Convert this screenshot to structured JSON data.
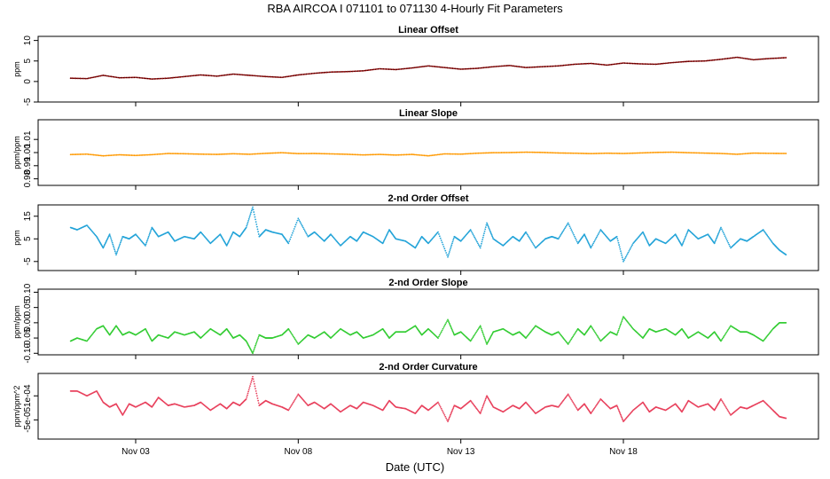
{
  "title": "RBA   AIRCOA I   071101 to 071130   4-Hourly Fit Parameters",
  "xlabel": "Date (UTC)",
  "x_ticks": [
    {
      "day": 3,
      "label": "Nov 03"
    },
    {
      "day": 8,
      "label": "Nov 08"
    },
    {
      "day": 13,
      "label": "Nov 13"
    },
    {
      "day": 18,
      "label": "Nov 18"
    }
  ],
  "x_range": [
    0.0,
    24.0
  ],
  "chart_data": [
    {
      "type": "line",
      "title": "Linear Offset",
      "ylabel": "ppm",
      "ylim": [
        -5,
        11
      ],
      "yticks": [
        {
          "v": -5,
          "label": "-5"
        },
        {
          "v": 0,
          "label": "0"
        },
        {
          "v": 5,
          "label": "5"
        },
        {
          "v": 10,
          "label": "10"
        }
      ],
      "color": "#8b0000",
      "x": [
        1.0,
        1.5,
        2.0,
        2.5,
        3.0,
        3.5,
        4.0,
        4.5,
        5.0,
        5.5,
        6.0,
        6.5,
        7.0,
        7.5,
        8.0,
        8.5,
        9.0,
        9.5,
        10.0,
        10.5,
        11.0,
        11.5,
        12.0,
        12.5,
        13.0,
        13.5,
        14.0,
        14.5,
        15.0,
        15.5,
        16.0,
        16.5,
        17.0,
        17.5,
        18.0,
        18.5,
        19.0,
        19.5,
        20.0,
        20.5,
        21.0,
        21.5,
        22.0,
        22.5,
        23.0
      ],
      "values": [
        0.8,
        0.7,
        1.5,
        0.9,
        1.0,
        0.6,
        0.8,
        1.2,
        1.6,
        1.3,
        1.8,
        1.5,
        1.2,
        1.0,
        1.6,
        2.0,
        2.3,
        2.4,
        2.6,
        3.1,
        2.9,
        3.3,
        3.8,
        3.4,
        3.0,
        3.2,
        3.6,
        3.9,
        3.4,
        3.6,
        3.8,
        4.2,
        4.4,
        4.0,
        4.5,
        4.3,
        4.2,
        4.6,
        4.9,
        5.0,
        5.4,
        5.9,
        5.3,
        5.6,
        5.8
      ]
    },
    {
      "type": "line",
      "title": "Linear Slope",
      "ylabel": "ppm/ppm",
      "ylim": [
        0.975,
        1.025
      ],
      "yticks": [
        {
          "v": 0.98,
          "label": "0.98"
        },
        {
          "v": 0.99,
          "label": "0.99"
        },
        {
          "v": 1.0,
          "label": "1.00"
        },
        {
          "v": 1.01,
          "label": "1.01"
        }
      ],
      "color": "#ff9900",
      "x": [
        1.0,
        1.5,
        2.0,
        2.5,
        3.0,
        3.5,
        4.0,
        4.5,
        5.0,
        5.5,
        6.0,
        6.5,
        7.0,
        7.5,
        8.0,
        8.5,
        9.0,
        9.5,
        10.0,
        10.5,
        11.0,
        11.5,
        12.0,
        12.5,
        13.0,
        13.5,
        14.0,
        14.5,
        15.0,
        15.5,
        16.0,
        16.5,
        17.0,
        17.5,
        18.0,
        18.5,
        19.0,
        19.5,
        20.0,
        20.5,
        21.0,
        21.5,
        22.0,
        22.5,
        23.0
      ],
      "values": [
        0.9985,
        0.9988,
        0.9975,
        0.9983,
        0.9978,
        0.9984,
        0.9993,
        0.9991,
        0.9988,
        0.9986,
        0.9991,
        0.9987,
        0.9994,
        0.9999,
        0.9992,
        0.9993,
        0.999,
        0.9987,
        0.9982,
        0.9986,
        0.9981,
        0.9986,
        0.9975,
        0.999,
        0.9988,
        0.9995,
        0.9999,
        1.0,
        1.0003,
        1.0001,
        0.9997,
        0.9995,
        0.9992,
        0.9995,
        0.9993,
        0.9997,
        1.0001,
        1.0003,
        0.9999,
        0.9996,
        0.9993,
        0.9987,
        0.9996,
        0.9994,
        0.9993
      ]
    },
    {
      "type": "line",
      "title": "2-nd Order Offset",
      "ylabel": "ppm",
      "ylim": [
        -9,
        20
      ],
      "yticks": [
        {
          "v": -5,
          "label": "-5"
        },
        {
          "v": 5,
          "label": "5"
        },
        {
          "v": 15,
          "label": "15"
        }
      ],
      "color": "#22a3d8",
      "x": [
        1.0,
        1.2,
        1.5,
        1.8,
        2.0,
        2.2,
        2.4,
        2.6,
        2.8,
        3.0,
        3.3,
        3.5,
        3.7,
        4.0,
        4.2,
        4.5,
        4.8,
        5.0,
        5.3,
        5.6,
        5.8,
        6.0,
        6.2,
        6.4,
        6.6,
        6.8,
        7.0,
        7.2,
        7.5,
        7.7,
        8.0,
        8.3,
        8.5,
        8.8,
        9.0,
        9.3,
        9.6,
        9.8,
        10.0,
        10.3,
        10.6,
        10.8,
        11.0,
        11.3,
        11.6,
        11.8,
        12.0,
        12.3,
        12.6,
        12.8,
        13.0,
        13.3,
        13.6,
        13.8,
        14.0,
        14.3,
        14.6,
        14.8,
        15.0,
        15.3,
        15.6,
        15.8,
        16.0,
        16.3,
        16.6,
        16.8,
        17.0,
        17.3,
        17.6,
        17.8,
        18.0,
        18.3,
        18.6,
        18.8,
        19.0,
        19.3,
        19.6,
        19.8,
        20.0,
        20.3,
        20.6,
        20.8,
        21.0,
        21.3,
        21.6,
        21.8,
        22.0,
        22.3,
        22.6,
        22.8,
        23.0
      ],
      "values": [
        10,
        9,
        11,
        6,
        1,
        7,
        -2,
        6,
        5,
        7,
        2,
        10,
        6,
        8,
        4,
        6,
        5,
        8,
        3,
        7,
        2,
        8,
        6,
        10,
        19,
        6,
        9,
        8,
        7,
        3,
        14,
        6,
        8,
        4,
        7,
        2,
        6,
        4,
        8,
        6,
        3,
        9,
        5,
        4,
        1,
        6,
        3,
        8,
        -3,
        6,
        4,
        9,
        1,
        12,
        5,
        2,
        6,
        4,
        8,
        1,
        5,
        6,
        5,
        12,
        3,
        7,
        1,
        9,
        4,
        6,
        -5,
        3,
        8,
        2,
        5,
        3,
        7,
        2,
        9,
        5,
        7,
        3,
        10,
        1,
        5,
        4,
        6,
        9,
        3,
        0,
        -2
      ]
    },
    {
      "type": "line",
      "title": "2-nd Order Slope",
      "ylabel": "ppm/ppm",
      "ylim": [
        -0.105,
        0.11
      ],
      "yticks": [
        {
          "v": -0.1,
          "label": "-0.10"
        },
        {
          "v": -0.05,
          "label": "-0.05"
        },
        {
          "v": 0.0,
          "label": "0.00"
        },
        {
          "v": 0.05,
          "label": "0.05"
        },
        {
          "v": 0.1,
          "label": "0.10"
        }
      ],
      "color": "#33cc33",
      "x": [
        1.0,
        1.2,
        1.5,
        1.8,
        2.0,
        2.2,
        2.4,
        2.6,
        2.8,
        3.0,
        3.3,
        3.5,
        3.7,
        4.0,
        4.2,
        4.5,
        4.8,
        5.0,
        5.3,
        5.6,
        5.8,
        6.0,
        6.2,
        6.4,
        6.6,
        6.8,
        7.0,
        7.2,
        7.5,
        7.7,
        8.0,
        8.3,
        8.5,
        8.8,
        9.0,
        9.3,
        9.6,
        9.8,
        10.0,
        10.3,
        10.6,
        10.8,
        11.0,
        11.3,
        11.6,
        11.8,
        12.0,
        12.3,
        12.6,
        12.8,
        13.0,
        13.3,
        13.6,
        13.8,
        14.0,
        14.3,
        14.6,
        14.8,
        15.0,
        15.3,
        15.6,
        15.8,
        16.0,
        16.3,
        16.6,
        16.8,
        17.0,
        17.3,
        17.6,
        17.8,
        18.0,
        18.3,
        18.6,
        18.8,
        19.0,
        19.3,
        19.6,
        19.8,
        20.0,
        20.3,
        20.6,
        20.8,
        21.0,
        21.3,
        21.6,
        21.8,
        22.0,
        22.3,
        22.6,
        22.8,
        23.0
      ],
      "values": [
        -0.06,
        -0.05,
        -0.06,
        -0.02,
        -0.01,
        -0.04,
        -0.01,
        -0.04,
        -0.03,
        -0.04,
        -0.02,
        -0.06,
        -0.04,
        -0.05,
        -0.03,
        -0.04,
        -0.03,
        -0.05,
        -0.02,
        -0.04,
        -0.02,
        -0.05,
        -0.04,
        -0.06,
        -0.1,
        -0.04,
        -0.05,
        -0.05,
        -0.04,
        -0.02,
        -0.07,
        -0.04,
        -0.05,
        -0.03,
        -0.05,
        -0.02,
        -0.04,
        -0.03,
        -0.05,
        -0.04,
        -0.02,
        -0.05,
        -0.03,
        -0.03,
        -0.01,
        -0.04,
        -0.02,
        -0.05,
        0.01,
        -0.04,
        -0.03,
        -0.06,
        -0.01,
        -0.07,
        -0.03,
        -0.02,
        -0.04,
        -0.03,
        -0.05,
        -0.01,
        -0.03,
        -0.04,
        -0.03,
        -0.07,
        -0.02,
        -0.04,
        -0.01,
        -0.06,
        -0.03,
        -0.04,
        0.02,
        -0.02,
        -0.05,
        -0.02,
        -0.03,
        -0.02,
        -0.04,
        -0.02,
        -0.05,
        -0.03,
        -0.05,
        -0.03,
        -0.06,
        -0.01,
        -0.03,
        -0.03,
        -0.04,
        -0.06,
        -0.02,
        0.0,
        0.0
      ]
    },
    {
      "type": "line",
      "title": "2-nd Order Curvature",
      "ylabel": "ppm/ppm^2",
      "ylim": [
        -0.00017,
        0.00024
      ],
      "yticks": [
        {
          "v": -5e-05,
          "label": "-5e-05"
        },
        {
          "v": 0.0001,
          "label": "1e-04"
        }
      ],
      "color": "#e8405c",
      "x": [
        1.0,
        1.2,
        1.5,
        1.8,
        2.0,
        2.2,
        2.4,
        2.6,
        2.8,
        3.0,
        3.3,
        3.5,
        3.7,
        4.0,
        4.2,
        4.5,
        4.8,
        5.0,
        5.3,
        5.6,
        5.8,
        6.0,
        6.2,
        6.4,
        6.6,
        6.8,
        7.0,
        7.2,
        7.5,
        7.7,
        8.0,
        8.3,
        8.5,
        8.8,
        9.0,
        9.3,
        9.6,
        9.8,
        10.0,
        10.3,
        10.6,
        10.8,
        11.0,
        11.3,
        11.6,
        11.8,
        12.0,
        12.3,
        12.6,
        12.8,
        13.0,
        13.3,
        13.6,
        13.8,
        14.0,
        14.3,
        14.6,
        14.8,
        15.0,
        15.3,
        15.6,
        15.8,
        16.0,
        16.3,
        16.6,
        16.8,
        17.0,
        17.3,
        17.6,
        17.8,
        18.0,
        18.3,
        18.6,
        18.8,
        19.0,
        19.3,
        19.6,
        19.8,
        20.0,
        20.3,
        20.6,
        20.8,
        21.0,
        21.3,
        21.6,
        21.8,
        22.0,
        22.3,
        22.6,
        22.8,
        23.0
      ],
      "values": [
        0.00013,
        0.00013,
        0.0001,
        0.00013,
        6e-05,
        3e-05,
        5e-05,
        -2e-05,
        5e-05,
        3e-05,
        6e-05,
        3e-05,
        9e-05,
        4e-05,
        5e-05,
        3e-05,
        4e-05,
        6e-05,
        1e-05,
        5e-05,
        2e-05,
        6e-05,
        4e-05,
        8e-05,
        0.00022,
        4e-05,
        7e-05,
        5e-05,
        3e-05,
        1e-05,
        0.00011,
        4e-05,
        6e-05,
        2e-05,
        5e-05,
        0.0,
        4e-05,
        2e-05,
        6e-05,
        4e-05,
        1e-05,
        7e-05,
        3e-05,
        2e-05,
        -1e-05,
        4e-05,
        1e-05,
        6e-05,
        -6e-05,
        4e-05,
        2e-05,
        7e-05,
        -1e-05,
        0.0001,
        3e-05,
        0.0,
        4e-05,
        2e-05,
        6e-05,
        -1e-05,
        3e-05,
        4e-05,
        3e-05,
        0.00011,
        1e-05,
        5e-05,
        -1e-05,
        8e-05,
        2e-05,
        4e-05,
        -6e-05,
        1e-05,
        6e-05,
        0.0,
        3e-05,
        1e-05,
        5e-05,
        0.0,
        7e-05,
        3e-05,
        5e-05,
        1e-05,
        8e-05,
        -2e-05,
        3e-05,
        2e-05,
        4e-05,
        7e-05,
        1e-05,
        -3e-05,
        -4e-05
      ]
    }
  ]
}
